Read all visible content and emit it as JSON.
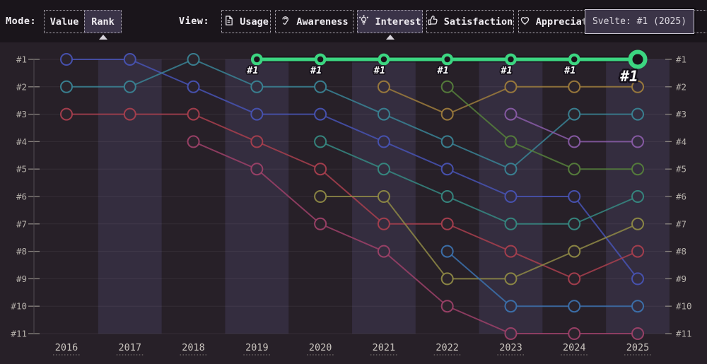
{
  "toolbar": {
    "mode_label": "Mode:",
    "view_label": "View:",
    "modes": [
      {
        "label": "Value",
        "selected": false
      },
      {
        "label": "Rank",
        "selected": true
      }
    ],
    "views": [
      {
        "label": "Usage",
        "icon": "document-icon",
        "selected": false
      },
      {
        "label": "Awareness",
        "icon": "ear-icon",
        "selected": false
      },
      {
        "label": "Interest",
        "icon": "lightbulb-icon",
        "selected": true
      },
      {
        "label": "Satisfaction",
        "icon": "thumbs-up-icon",
        "selected": false
      },
      {
        "label": "Appreciation",
        "icon": "heart-icon",
        "selected": false
      }
    ]
  },
  "tooltip": {
    "text": "Svelte: #1 (2025)"
  },
  "theme": {
    "topbar_bg": "#1a151b",
    "chart_bg": "#272028",
    "band_color": "#342d3f",
    "selected_bg": "#3a3348",
    "tooltip_bg": "#3b3447",
    "highlight_green": "#3cd681",
    "axis_text": "#b5b0aa",
    "year_text": "#cac5bf",
    "grid_line": "rgba(235,225,235,0.07)",
    "axis_line": "#514b52"
  },
  "chart_data": {
    "type": "line",
    "subtype": "bump-rank",
    "title": "",
    "x": [
      2016,
      2017,
      2018,
      2019,
      2020,
      2021,
      2022,
      2023,
      2024,
      2025
    ],
    "y_ticks": [
      "#1",
      "#2",
      "#3",
      "#4",
      "#5",
      "#6",
      "#7",
      "#8",
      "#9",
      "#10",
      "#11"
    ],
    "ylim": [
      1,
      11
    ],
    "grid": true,
    "legend": "none",
    "highlight": {
      "id": "svelte",
      "tooltip_name": "Svelte",
      "color": "#3cd681",
      "points": [
        [
          2019,
          1
        ],
        [
          2020,
          1
        ],
        [
          2021,
          1
        ],
        [
          2022,
          1
        ],
        [
          2023,
          1
        ],
        [
          2024,
          1
        ],
        [
          2025,
          1
        ]
      ],
      "point_labels": [
        "#1",
        "#1",
        "#1",
        "#1",
        "#1",
        "#1",
        "#1"
      ]
    },
    "series": [
      {
        "id": "indigo-series",
        "color": "#4853b4",
        "points": [
          [
            2016,
            1
          ],
          [
            2017,
            1
          ],
          [
            2018,
            2
          ],
          [
            2019,
            3
          ],
          [
            2020,
            3
          ],
          [
            2021,
            4
          ],
          [
            2022,
            5
          ],
          [
            2023,
            6
          ],
          [
            2024,
            6
          ],
          [
            2025,
            9
          ]
        ]
      },
      {
        "id": "teal-series",
        "color": "#3a8495",
        "points": [
          [
            2016,
            2
          ],
          [
            2017,
            2
          ],
          [
            2018,
            1
          ],
          [
            2019,
            2
          ],
          [
            2020,
            2
          ],
          [
            2021,
            3
          ],
          [
            2022,
            4
          ],
          [
            2023,
            5
          ],
          [
            2024,
            3
          ],
          [
            2025,
            3
          ]
        ]
      },
      {
        "id": "crimson-series",
        "color": "#a93f4e",
        "points": [
          [
            2016,
            3
          ],
          [
            2017,
            3
          ],
          [
            2018,
            3
          ],
          [
            2019,
            4
          ],
          [
            2020,
            5
          ],
          [
            2021,
            7
          ],
          [
            2022,
            7
          ],
          [
            2023,
            8
          ],
          [
            2024,
            9
          ],
          [
            2025,
            8
          ]
        ]
      },
      {
        "id": "magenta-series",
        "color": "#9d4168",
        "points": [
          [
            2018,
            4
          ],
          [
            2019,
            5
          ],
          [
            2020,
            7
          ],
          [
            2021,
            8
          ],
          [
            2022,
            10
          ],
          [
            2023,
            11
          ],
          [
            2024,
            11
          ],
          [
            2025,
            11
          ]
        ]
      },
      {
        "id": "cyan-series",
        "color": "#368a82",
        "points": [
          [
            2020,
            4
          ],
          [
            2021,
            5
          ],
          [
            2022,
            6
          ],
          [
            2023,
            7
          ],
          [
            2024,
            7
          ],
          [
            2025,
            6
          ]
        ]
      },
      {
        "id": "olive-series",
        "color": "#8f8a45",
        "points": [
          [
            2020,
            6
          ],
          [
            2021,
            6
          ],
          [
            2022,
            9
          ],
          [
            2023,
            9
          ],
          [
            2024,
            8
          ],
          [
            2025,
            7
          ]
        ]
      },
      {
        "id": "brown-series",
        "color": "#9e7c3c",
        "points": [
          [
            2021,
            2
          ],
          [
            2022,
            3
          ],
          [
            2023,
            2
          ],
          [
            2024,
            2
          ],
          [
            2025,
            2
          ]
        ]
      },
      {
        "id": "darkgreen-series",
        "color": "#56803b",
        "points": [
          [
            2022,
            2
          ],
          [
            2023,
            4
          ],
          [
            2024,
            5
          ],
          [
            2025,
            5
          ]
        ]
      },
      {
        "id": "steelblue-series",
        "color": "#3c72ae",
        "points": [
          [
            2022,
            8
          ],
          [
            2023,
            10
          ],
          [
            2024,
            10
          ],
          [
            2025,
            10
          ]
        ]
      },
      {
        "id": "violet-series",
        "color": "#8a5ca8",
        "points": [
          [
            2023,
            3
          ],
          [
            2024,
            4
          ],
          [
            2025,
            4
          ]
        ]
      }
    ]
  }
}
